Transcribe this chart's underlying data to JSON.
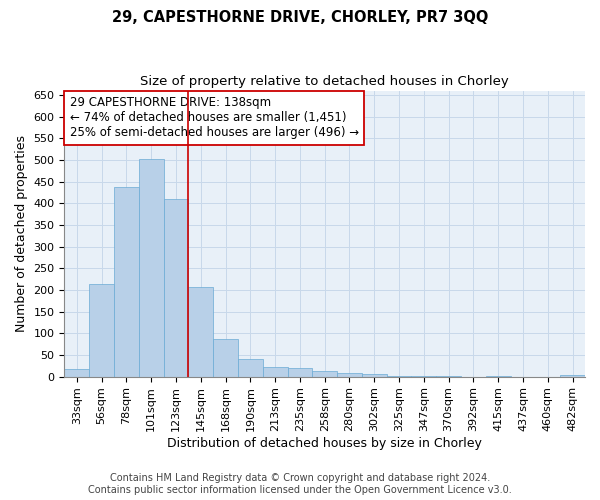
{
  "title": "29, CAPESTHORNE DRIVE, CHORLEY, PR7 3QQ",
  "subtitle": "Size of property relative to detached houses in Chorley",
  "xlabel": "Distribution of detached houses by size in Chorley",
  "ylabel": "Number of detached properties",
  "categories": [
    "33sqm",
    "56sqm",
    "78sqm",
    "101sqm",
    "123sqm",
    "145sqm",
    "168sqm",
    "190sqm",
    "213sqm",
    "235sqm",
    "258sqm",
    "280sqm",
    "302sqm",
    "325sqm",
    "347sqm",
    "370sqm",
    "392sqm",
    "415sqm",
    "437sqm",
    "460sqm",
    "482sqm"
  ],
  "values": [
    18,
    213,
    437,
    503,
    410,
    207,
    86,
    40,
    22,
    19,
    14,
    8,
    5,
    2,
    1,
    1,
    0,
    1,
    0,
    0,
    4
  ],
  "bar_color": "#b8d0e8",
  "bar_edge_color": "#6aaad4",
  "grid_color": "#c8d8ea",
  "background_color": "#e8f0f8",
  "vline_x": 4.5,
  "vline_color": "#cc0000",
  "annotation_box_text": "29 CAPESTHORNE DRIVE: 138sqm\n← 74% of detached houses are smaller (1,451)\n25% of semi-detached houses are larger (496) →",
  "ylim": [
    0,
    660
  ],
  "yticks": [
    0,
    50,
    100,
    150,
    200,
    250,
    300,
    350,
    400,
    450,
    500,
    550,
    600,
    650
  ],
  "footer_line1": "Contains HM Land Registry data © Crown copyright and database right 2024.",
  "footer_line2": "Contains public sector information licensed under the Open Government Licence v3.0.",
  "title_fontsize": 10.5,
  "subtitle_fontsize": 9.5,
  "label_fontsize": 9,
  "tick_fontsize": 8,
  "annotation_fontsize": 8.5,
  "footer_fontsize": 7
}
